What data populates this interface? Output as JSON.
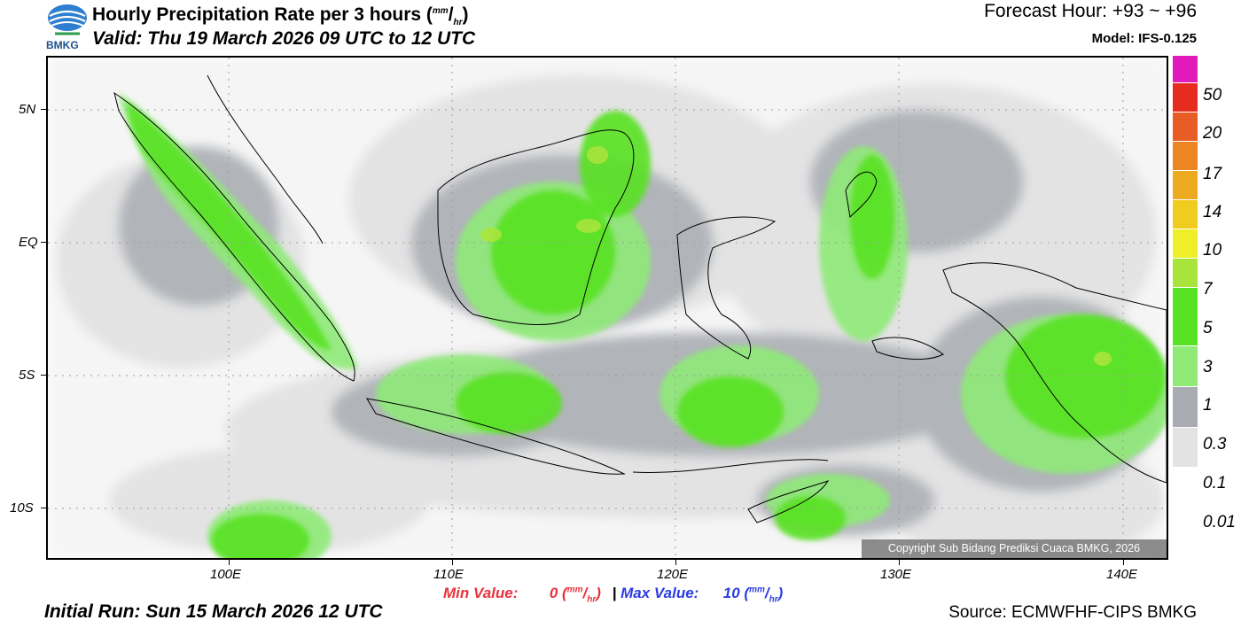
{
  "header": {
    "logo_text": "BMKG",
    "title_main": "Hourly Precipitation Rate per 3 hours (",
    "title_unit_num": "mm",
    "title_unit_den": "hr",
    "title_close": ")",
    "valid": "Valid: Thu 19 March 2026 09 UTC to 12 UTC",
    "forecast_hour": "Forecast Hour: +93 ~ +96",
    "model": "Model: IFS-0.125"
  },
  "map": {
    "lat_labels": [
      "5N",
      "EQ",
      "5S",
      "10S"
    ],
    "lon_labels": [
      "100E",
      "110E",
      "120E",
      "130E",
      "140E"
    ],
    "copyright": "Copyright Sub Bidang Prediksi Cuaca BMKG, 2026"
  },
  "legend": {
    "labels": [
      "50",
      "20",
      "17",
      "14",
      "10",
      "7",
      "5",
      "3",
      "1",
      "0.3",
      "0.1",
      "0.01"
    ],
    "colors": [
      "#e11bbb",
      "#e62c1e",
      "#e85c25",
      "#ec8624",
      "#eda91f",
      "#f0cc1e",
      "#eeee29",
      "#a8e43c",
      "#58e224",
      "#8fea78",
      "#a9acb2",
      "#e3e3e3"
    ]
  },
  "footer": {
    "min_label": "Min Value:",
    "min_value": "0 (",
    "max_label": "Max Value:",
    "max_value": "10 (",
    "unit_num": "mm",
    "unit_den": "hr",
    "unit_close": ")",
    "separator": "|",
    "initial_run": "Initial Run: Sun 15 March 2026 12 UTC",
    "source": "Source: ECMWFHF-CIPS BMKG"
  }
}
